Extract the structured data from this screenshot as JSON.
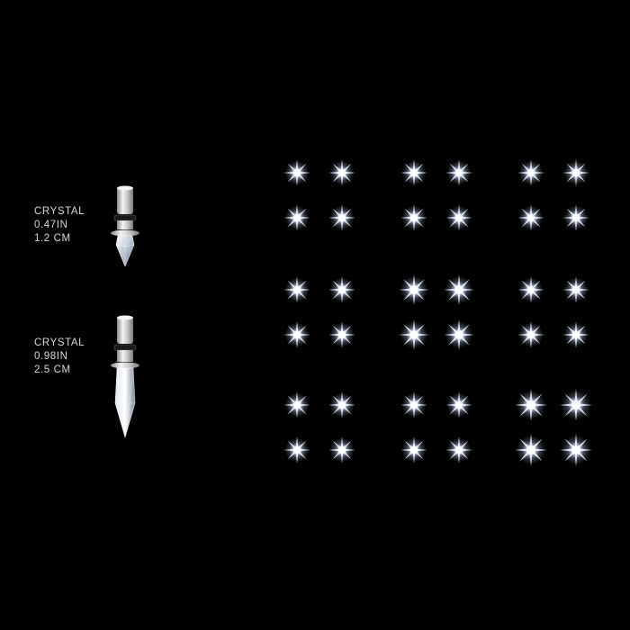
{
  "products": [
    {
      "id": "small",
      "material": "CRYSTAL",
      "size_in": "0.47IN",
      "size_cm": "1.2 CM"
    },
    {
      "id": "large",
      "material": "CRYSTAL",
      "size_in": "0.98IN",
      "size_cm": "2.5 CM"
    }
  ],
  "colors": {
    "background": "#000000",
    "label_text": "#d8d8d8",
    "metal": "#d9d9d9",
    "ring": "#1a1a1a",
    "star_core": "#ffffff",
    "star_glow": "#b8c8e8"
  },
  "star_grid": {
    "groups_rows": 3,
    "groups_cols": 3,
    "stars_per_group": 4
  }
}
